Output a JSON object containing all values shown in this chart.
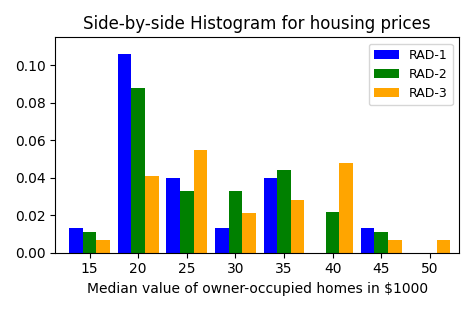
{
  "title": "Side-by-side Histogram for housing prices",
  "xlabel": "Median value of owner-occupied homes in $1000",
  "ylabel": "",
  "bin_centers": [
    15,
    20,
    25,
    30,
    35,
    40,
    45,
    50
  ],
  "rad1": [
    0.013,
    0.106,
    0.04,
    0.013,
    0.04,
    0.0,
    0.013,
    0.0
  ],
  "rad2": [
    0.011,
    0.088,
    0.033,
    0.033,
    0.044,
    0.022,
    0.011,
    0.0
  ],
  "rad3": [
    0.007,
    0.041,
    0.055,
    0.021,
    0.028,
    0.048,
    0.007,
    0.007
  ],
  "colors": [
    "blue",
    "green",
    "orange"
  ],
  "labels": [
    "RAD-1",
    "RAD-2",
    "RAD-3"
  ],
  "ylim": [
    0.0,
    0.115
  ],
  "xlim": [
    11.5,
    53
  ],
  "xticks": [
    15,
    20,
    25,
    30,
    35,
    40,
    45,
    50
  ],
  "bar_width": 1.4
}
